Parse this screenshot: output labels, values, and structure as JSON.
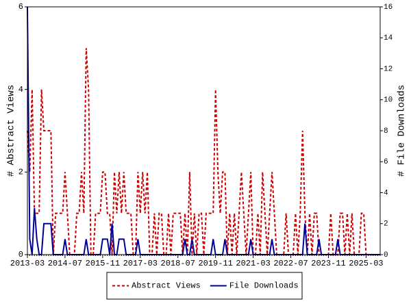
{
  "chart_data": {
    "type": "line",
    "ylabel": "# Abstract Views",
    "y2label": "# File Downloads",
    "x": [
      "2013-03",
      "2013-04",
      "2013-05",
      "2013-06",
      "2013-07",
      "2013-08",
      "2013-09",
      "2013-10",
      "2013-11",
      "2013-12",
      "2014-01",
      "2014-02",
      "2014-03",
      "2014-04",
      "2014-05",
      "2014-06",
      "2014-07",
      "2014-08",
      "2014-09",
      "2014-10",
      "2014-11",
      "2014-12",
      "2015-01",
      "2015-02",
      "2015-03",
      "2015-04",
      "2015-05",
      "2015-06",
      "2015-07",
      "2015-08",
      "2015-09",
      "2015-10",
      "2015-11",
      "2015-12",
      "2016-01",
      "2016-02",
      "2016-03",
      "2016-04",
      "2016-05",
      "2016-06",
      "2016-07",
      "2016-08",
      "2016-09",
      "2016-10",
      "2016-11",
      "2016-12",
      "2017-01",
      "2017-02",
      "2017-03",
      "2017-04",
      "2017-05",
      "2017-06",
      "2017-07",
      "2017-08",
      "2017-09",
      "2017-10",
      "2017-11",
      "2017-12",
      "2018-01",
      "2018-02",
      "2018-03",
      "2018-04",
      "2018-05",
      "2018-06",
      "2018-07",
      "2018-08",
      "2018-09",
      "2018-10",
      "2018-11",
      "2018-12",
      "2019-01",
      "2019-02",
      "2019-03",
      "2019-04",
      "2019-05",
      "2019-06",
      "2019-07",
      "2019-08",
      "2019-09",
      "2019-10",
      "2019-11",
      "2019-12",
      "2020-01",
      "2020-02",
      "2020-03",
      "2020-04",
      "2020-05",
      "2020-06",
      "2020-07",
      "2020-08",
      "2020-09",
      "2020-10",
      "2020-11",
      "2020-12",
      "2021-01",
      "2021-02",
      "2021-03",
      "2021-04",
      "2021-05",
      "2021-06",
      "2021-07",
      "2021-08",
      "2021-09",
      "2021-10",
      "2021-11",
      "2021-12",
      "2022-01",
      "2022-02",
      "2022-03",
      "2022-04",
      "2022-05",
      "2022-06",
      "2022-07",
      "2022-08",
      "2022-09",
      "2022-10",
      "2022-11",
      "2022-12",
      "2023-01",
      "2023-02",
      "2023-03",
      "2023-04",
      "2023-05",
      "2023-06",
      "2023-07",
      "2023-08",
      "2023-09",
      "2023-10",
      "2023-11",
      "2023-12",
      "2024-01",
      "2024-02",
      "2024-03",
      "2024-04",
      "2024-05",
      "2024-06",
      "2024-07",
      "2024-08",
      "2024-09",
      "2024-10",
      "2024-11",
      "2024-12",
      "2025-01",
      "2025-02",
      "2025-03",
      "2025-04",
      "2025-05",
      "2025-06",
      "2025-07",
      "2025-08",
      "2025-09"
    ],
    "series": [
      {
        "name": "Abstract Views",
        "color": "#cc0000",
        "dashed": true,
        "axis": "y",
        "values": [
          3,
          2,
          4,
          1,
          1,
          1,
          4,
          3,
          3,
          3,
          3,
          0,
          1,
          1,
          1,
          1,
          2,
          1,
          0,
          0,
          0,
          1,
          1,
          2,
          1,
          5,
          4,
          0,
          0,
          1,
          1,
          1,
          2,
          2,
          1,
          1,
          0,
          2,
          1,
          2,
          1,
          2,
          1,
          1,
          1,
          0,
          0,
          2,
          1,
          2,
          1,
          2,
          0,
          0,
          1,
          0,
          1,
          1,
          0,
          0,
          1,
          0,
          1,
          1,
          1,
          1,
          0,
          1,
          0,
          2,
          0,
          1,
          0,
          1,
          1,
          0,
          1,
          1,
          1,
          1,
          4,
          2,
          1,
          2,
          2,
          0,
          1,
          0,
          1,
          0,
          1,
          2,
          1,
          0,
          1,
          2,
          0,
          0,
          1,
          0,
          2,
          1,
          0,
          1,
          2,
          1,
          0,
          0,
          0,
          0,
          1,
          0,
          0,
          0,
          1,
          0,
          1,
          3,
          1,
          0,
          1,
          0,
          1,
          1,
          0,
          0,
          0,
          0,
          0,
          1,
          0,
          0,
          0,
          1,
          1,
          0,
          1,
          0,
          1,
          0,
          0,
          0,
          1,
          1,
          0,
          0,
          0,
          0,
          0,
          0,
          0
        ]
      },
      {
        "name": "File Downloads",
        "color": "#000099",
        "dashed": false,
        "axis": "y2",
        "values": [
          16,
          1,
          0,
          3,
          1,
          0,
          0,
          2,
          2,
          2,
          2,
          0,
          0,
          0,
          0,
          0,
          1,
          0,
          0,
          0,
          0,
          0,
          0,
          0,
          0,
          1,
          0,
          0,
          0,
          0,
          0,
          0,
          1,
          1,
          1,
          0,
          2,
          0,
          0,
          1,
          1,
          1,
          0,
          0,
          0,
          0,
          0,
          1,
          0,
          0,
          0,
          0,
          0,
          0,
          0,
          0,
          0,
          0,
          0,
          0,
          0,
          0,
          0,
          0,
          0,
          0,
          0,
          1,
          0,
          0,
          1,
          0,
          0,
          0,
          0,
          0,
          0,
          0,
          0,
          1,
          0,
          0,
          0,
          0,
          1,
          0,
          0,
          0,
          0,
          0,
          0,
          0,
          0,
          0,
          0,
          1,
          0,
          0,
          0,
          0,
          0,
          0,
          0,
          0,
          1,
          0,
          0,
          0,
          0,
          0,
          0,
          0,
          0,
          0,
          0,
          0,
          0,
          0,
          2,
          0,
          0,
          0,
          0,
          0,
          1,
          0,
          0,
          0,
          0,
          0,
          0,
          0,
          1,
          0,
          0,
          0,
          0,
          0,
          0,
          0,
          0,
          0,
          0,
          0,
          0,
          0,
          0,
          0,
          0,
          0,
          0
        ]
      }
    ],
    "ylim": [
      0,
      6
    ],
    "yticks": [
      0,
      2,
      4,
      6
    ],
    "y2lim": [
      0,
      16
    ],
    "y2ticks": [
      0,
      2,
      4,
      6,
      8,
      10,
      12,
      14,
      16
    ],
    "legend": "bottom"
  }
}
